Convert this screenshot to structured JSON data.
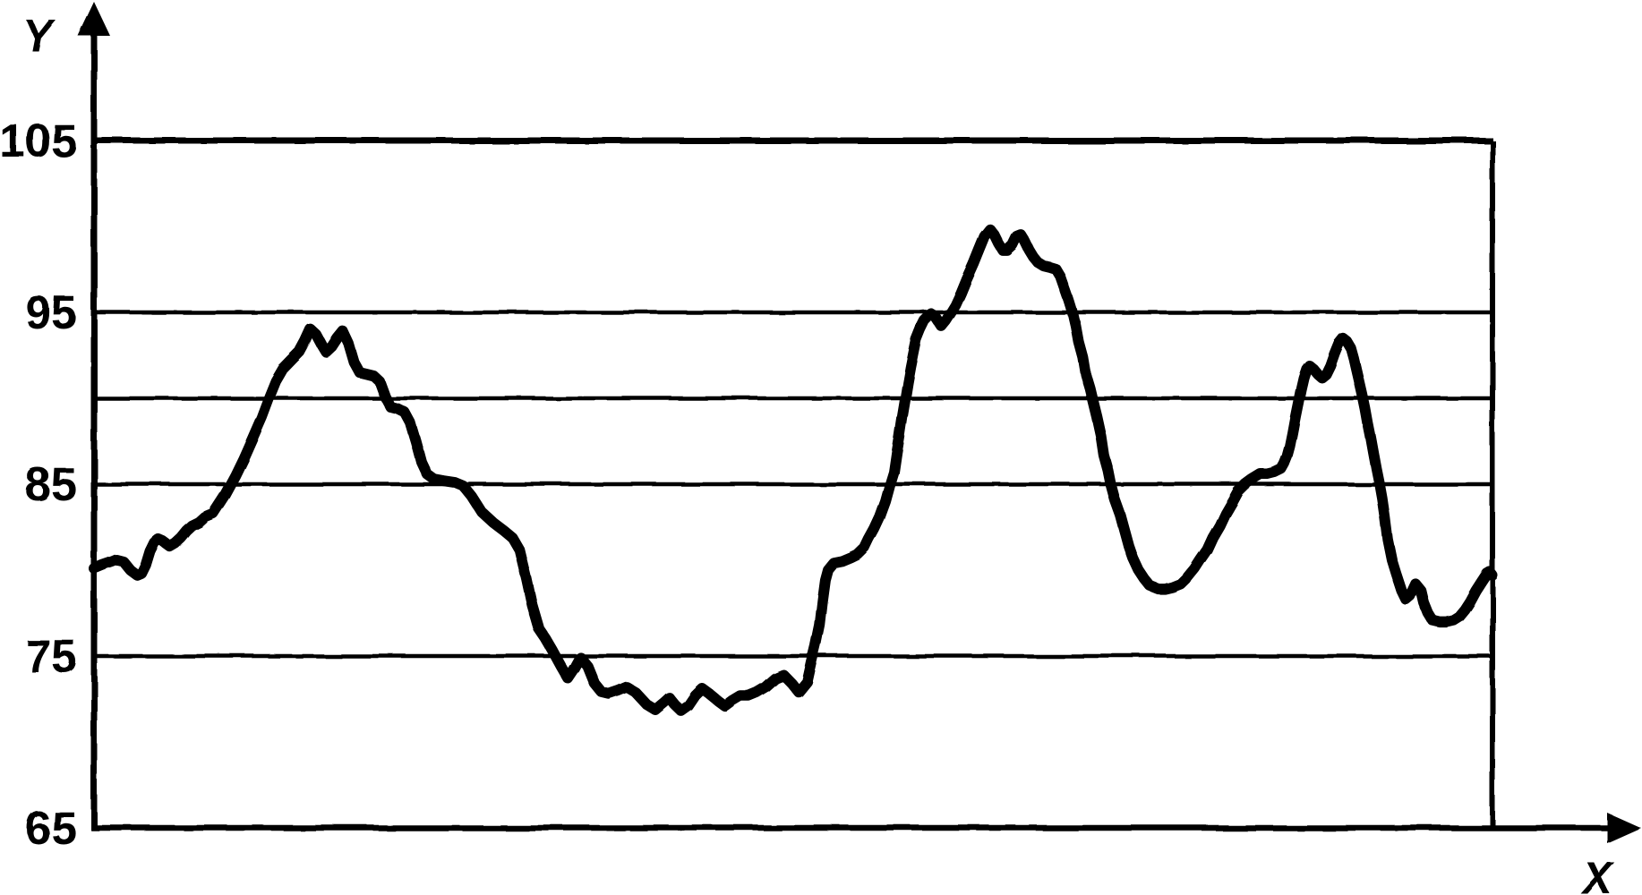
{
  "figure": {
    "background_color": "#ffffff",
    "ink_color": "#000000",
    "y_axis_label": "Y",
    "x_axis_label": "X"
  },
  "chart_data": {
    "type": "line",
    "title": "",
    "xlabel": "X",
    "ylabel": "Y",
    "ylim": [
      65,
      105
    ],
    "yticks": [
      105,
      95,
      85,
      75,
      65
    ],
    "gridlines": [
      105,
      95,
      90,
      85,
      75
    ],
    "grid": "horizontal only; plot box closed by right border; bottom axis at y=65 with right arrow; y axis with top arrow",
    "legend": "none",
    "x_units": "percent of x-axis span (x axis has no tick labels in figure)",
    "series": [
      {
        "name": "curve",
        "points": [
          [
            0,
            80.1
          ],
          [
            0.6,
            80.3
          ],
          [
            1.3,
            80.5
          ],
          [
            1.6,
            80.6
          ],
          [
            2.1,
            80.5
          ],
          [
            2.6,
            80.0
          ],
          [
            3.1,
            79.7
          ],
          [
            3.4,
            79.8
          ],
          [
            3.7,
            80.3
          ],
          [
            4.0,
            81.1
          ],
          [
            4.3,
            81.6
          ],
          [
            4.6,
            81.8
          ],
          [
            4.9,
            81.7
          ],
          [
            5.4,
            81.4
          ],
          [
            5.8,
            81.6
          ],
          [
            6.2,
            81.9
          ],
          [
            6.6,
            82.3
          ],
          [
            7.0,
            82.6
          ],
          [
            7.5,
            82.8
          ],
          [
            7.9,
            83.1
          ],
          [
            8.5,
            83.3
          ],
          [
            9.3,
            84.3
          ],
          [
            10.1,
            85.5
          ],
          [
            10.7,
            86.5
          ],
          [
            11.3,
            87.6
          ],
          [
            12.0,
            88.9
          ],
          [
            12.5,
            90.0
          ],
          [
            13.0,
            91.0
          ],
          [
            13.5,
            91.7
          ],
          [
            14.1,
            92.2
          ],
          [
            14.7,
            92.7
          ],
          [
            15.1,
            93.3
          ],
          [
            15.5,
            94.0
          ],
          [
            15.9,
            93.7
          ],
          [
            16.3,
            93.1
          ],
          [
            16.6,
            92.7
          ],
          [
            17.0,
            93.0
          ],
          [
            17.4,
            93.5
          ],
          [
            17.8,
            93.9
          ],
          [
            18.2,
            93.2
          ],
          [
            18.6,
            92.1
          ],
          [
            19.0,
            91.5
          ],
          [
            19.5,
            91.4
          ],
          [
            20.0,
            91.3
          ],
          [
            20.4,
            91.0
          ],
          [
            20.8,
            90.1
          ],
          [
            21.2,
            89.5
          ],
          [
            21.7,
            89.4
          ],
          [
            22.2,
            89.2
          ],
          [
            22.6,
            88.6
          ],
          [
            23.0,
            87.5
          ],
          [
            23.4,
            86.3
          ],
          [
            23.8,
            85.6
          ],
          [
            24.3,
            85.3
          ],
          [
            25.0,
            85.2
          ],
          [
            25.8,
            85.1
          ],
          [
            26.4,
            84.9
          ],
          [
            27.0,
            84.3
          ],
          [
            27.7,
            83.4
          ],
          [
            28.5,
            82.8
          ],
          [
            29.3,
            82.3
          ],
          [
            29.9,
            81.9
          ],
          [
            30.4,
            81.2
          ],
          [
            30.9,
            79.5
          ],
          [
            31.3,
            78.0
          ],
          [
            31.8,
            76.6
          ],
          [
            32.3,
            76.0
          ],
          [
            32.8,
            75.3
          ],
          [
            33.4,
            74.4
          ],
          [
            33.9,
            73.7
          ],
          [
            34.4,
            74.3
          ],
          [
            34.8,
            74.9
          ],
          [
            35.3,
            74.4
          ],
          [
            35.8,
            73.4
          ],
          [
            36.3,
            72.9
          ],
          [
            36.8,
            72.8
          ],
          [
            37.5,
            73.0
          ],
          [
            38.1,
            73.2
          ],
          [
            38.7,
            72.9
          ],
          [
            39.5,
            72.2
          ],
          [
            40.1,
            71.9
          ],
          [
            40.7,
            72.3
          ],
          [
            41.1,
            72.6
          ],
          [
            41.5,
            72.2
          ],
          [
            42.0,
            71.8
          ],
          [
            42.5,
            72.1
          ],
          [
            43.0,
            72.7
          ],
          [
            43.5,
            73.1
          ],
          [
            44.0,
            72.8
          ],
          [
            44.6,
            72.4
          ],
          [
            45.1,
            72.1
          ],
          [
            45.6,
            72.4
          ],
          [
            46.2,
            72.7
          ],
          [
            46.8,
            72.7
          ],
          [
            47.4,
            72.9
          ],
          [
            48.0,
            73.2
          ],
          [
            48.7,
            73.7
          ],
          [
            49.3,
            73.9
          ],
          [
            49.9,
            73.4
          ],
          [
            50.4,
            72.9
          ],
          [
            51.0,
            73.5
          ],
          [
            51.3,
            74.6
          ],
          [
            51.6,
            75.6
          ],
          [
            51.9,
            76.8
          ],
          [
            52.1,
            78.2
          ],
          [
            52.3,
            79.4
          ],
          [
            52.5,
            80.0
          ],
          [
            52.9,
            80.4
          ],
          [
            53.5,
            80.5
          ],
          [
            54.1,
            80.7
          ],
          [
            54.6,
            80.9
          ],
          [
            55.1,
            81.3
          ],
          [
            55.4,
            81.8
          ],
          [
            55.8,
            82.4
          ],
          [
            56.2,
            83.1
          ],
          [
            56.6,
            84.0
          ],
          [
            56.9,
            84.9
          ],
          [
            57.2,
            85.7
          ],
          [
            57.4,
            86.8
          ],
          [
            57.6,
            87.8
          ],
          [
            57.8,
            88.9
          ],
          [
            58.0,
            89.9
          ],
          [
            58.2,
            90.9
          ],
          [
            58.4,
            91.8
          ],
          [
            58.6,
            92.6
          ],
          [
            58.8,
            93.4
          ],
          [
            59.1,
            94.0
          ],
          [
            59.4,
            94.5
          ],
          [
            59.9,
            94.9
          ],
          [
            60.2,
            94.7
          ],
          [
            60.6,
            94.2
          ],
          [
            60.9,
            94.5
          ],
          [
            61.3,
            95.0
          ],
          [
            61.6,
            95.4
          ],
          [
            62.0,
            96.1
          ],
          [
            62.4,
            96.9
          ],
          [
            62.9,
            97.8
          ],
          [
            63.3,
            98.6
          ],
          [
            63.7,
            99.4
          ],
          [
            64.1,
            99.8
          ],
          [
            64.4,
            99.5
          ],
          [
            64.7,
            99.0
          ],
          [
            65.0,
            98.6
          ],
          [
            65.3,
            98.6
          ],
          [
            65.7,
            98.9
          ],
          [
            66.0,
            99.4
          ],
          [
            66.3,
            99.5
          ],
          [
            66.6,
            99.1
          ],
          [
            66.9,
            98.6
          ],
          [
            67.2,
            98.2
          ],
          [
            67.5,
            97.9
          ],
          [
            67.9,
            97.7
          ],
          [
            68.4,
            97.6
          ],
          [
            68.8,
            97.5
          ],
          [
            69.1,
            97.1
          ],
          [
            69.4,
            96.4
          ],
          [
            69.7,
            95.7
          ],
          [
            70.0,
            94.9
          ],
          [
            70.2,
            94.2
          ],
          [
            70.4,
            93.3
          ],
          [
            70.7,
            92.4
          ],
          [
            70.9,
            91.4
          ],
          [
            71.2,
            90.6
          ],
          [
            71.4,
            89.9
          ],
          [
            71.7,
            88.9
          ],
          [
            72.0,
            87.8
          ],
          [
            72.2,
            86.7
          ],
          [
            72.5,
            85.8
          ],
          [
            72.7,
            85.0
          ],
          [
            73.0,
            84.1
          ],
          [
            73.4,
            83.2
          ],
          [
            73.7,
            82.3
          ],
          [
            74.0,
            81.4
          ],
          [
            74.3,
            80.7
          ],
          [
            74.7,
            80.0
          ],
          [
            75.1,
            79.5
          ],
          [
            75.5,
            79.1
          ],
          [
            76.1,
            78.9
          ],
          [
            76.6,
            78.9
          ],
          [
            77.1,
            79.0
          ],
          [
            77.7,
            79.2
          ],
          [
            78.2,
            79.6
          ],
          [
            78.7,
            80.1
          ],
          [
            79.1,
            80.6
          ],
          [
            79.6,
            81.2
          ],
          [
            80.0,
            81.9
          ],
          [
            80.5,
            82.6
          ],
          [
            80.9,
            83.3
          ],
          [
            81.4,
            84.0
          ],
          [
            81.8,
            84.6
          ],
          [
            82.3,
            85.0
          ],
          [
            82.8,
            85.3
          ],
          [
            83.4,
            85.6
          ],
          [
            83.9,
            85.6
          ],
          [
            84.4,
            85.7
          ],
          [
            84.9,
            85.9
          ],
          [
            85.1,
            86.2
          ],
          [
            85.3,
            86.6
          ],
          [
            85.5,
            87.2
          ],
          [
            85.7,
            88.0
          ],
          [
            85.9,
            88.9
          ],
          [
            86.1,
            89.7
          ],
          [
            86.3,
            90.5
          ],
          [
            86.5,
            91.2
          ],
          [
            86.7,
            91.7
          ],
          [
            86.9,
            91.9
          ],
          [
            87.2,
            91.7
          ],
          [
            87.5,
            91.4
          ],
          [
            87.8,
            91.2
          ],
          [
            88.1,
            91.4
          ],
          [
            88.4,
            91.9
          ],
          [
            88.7,
            92.6
          ],
          [
            89.0,
            93.2
          ],
          [
            89.3,
            93.5
          ],
          [
            89.6,
            93.3
          ],
          [
            89.9,
            92.9
          ],
          [
            90.1,
            92.3
          ],
          [
            90.3,
            91.6
          ],
          [
            90.5,
            90.9
          ],
          [
            90.7,
            90.2
          ],
          [
            90.9,
            89.4
          ],
          [
            91.1,
            88.5
          ],
          [
            91.3,
            87.7
          ],
          [
            91.5,
            86.8
          ],
          [
            91.7,
            85.9
          ],
          [
            91.9,
            85.1
          ],
          [
            92.1,
            84.2
          ],
          [
            92.3,
            83.1
          ],
          [
            92.5,
            81.8
          ],
          [
            92.8,
            80.6
          ],
          [
            93.1,
            79.8
          ],
          [
            93.5,
            78.8
          ],
          [
            93.8,
            78.3
          ],
          [
            94.1,
            78.5
          ],
          [
            94.5,
            79.2
          ],
          [
            94.9,
            78.8
          ],
          [
            95.1,
            78.1
          ],
          [
            95.4,
            77.5
          ],
          [
            95.7,
            77.1
          ],
          [
            96.2,
            77.0
          ],
          [
            96.7,
            77.0
          ],
          [
            97.2,
            77.1
          ],
          [
            97.6,
            77.3
          ],
          [
            98.0,
            77.7
          ],
          [
            98.4,
            78.2
          ],
          [
            98.8,
            78.8
          ],
          [
            99.2,
            79.3
          ],
          [
            99.6,
            79.8
          ],
          [
            99.8,
            79.9
          ],
          [
            100,
            79.7
          ]
        ]
      }
    ]
  }
}
